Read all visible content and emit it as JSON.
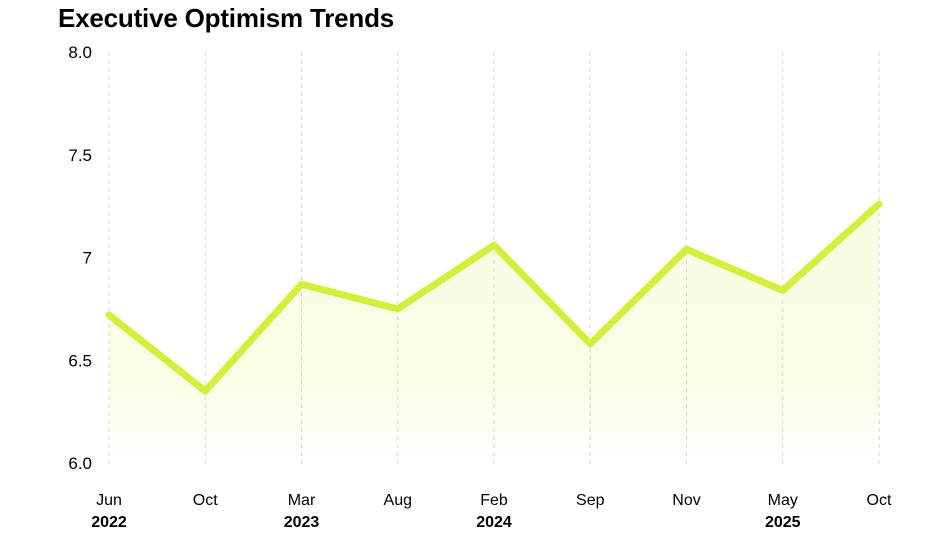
{
  "chart_data": {
    "type": "line",
    "title": "Executive Optimism Trends",
    "x_ticks": [
      {
        "month": "Jun",
        "year": "2022"
      },
      {
        "month": "Oct",
        "year": ""
      },
      {
        "month": "Mar",
        "year": "2023"
      },
      {
        "month": "Aug",
        "year": ""
      },
      {
        "month": "Feb",
        "year": "2024"
      },
      {
        "month": "Sep",
        "year": ""
      },
      {
        "month": "Nov",
        "year": ""
      },
      {
        "month": "May",
        "year": "2025"
      },
      {
        "month": "Oct",
        "year": ""
      }
    ],
    "values": [
      6.72,
      6.35,
      6.87,
      6.75,
      7.06,
      6.58,
      7.04,
      6.84,
      7.26
    ],
    "y_ticks": [
      {
        "label": "8.0",
        "value": 8.0
      },
      {
        "label": "7.5",
        "value": 7.5
      },
      {
        "label": "7",
        "value": 7.0
      },
      {
        "label": "6.5",
        "value": 6.5
      },
      {
        "label": "6.0",
        "value": 6.0
      }
    ],
    "ylim": [
      6.0,
      8.0
    ],
    "grid": "vertical-dashed",
    "legend": "none",
    "colors": {
      "line": "#d5ee3b",
      "area_fill": "#d5ee3b",
      "gridline": "#d6d6d6",
      "text": "#000000",
      "background": "#ffffff"
    }
  }
}
